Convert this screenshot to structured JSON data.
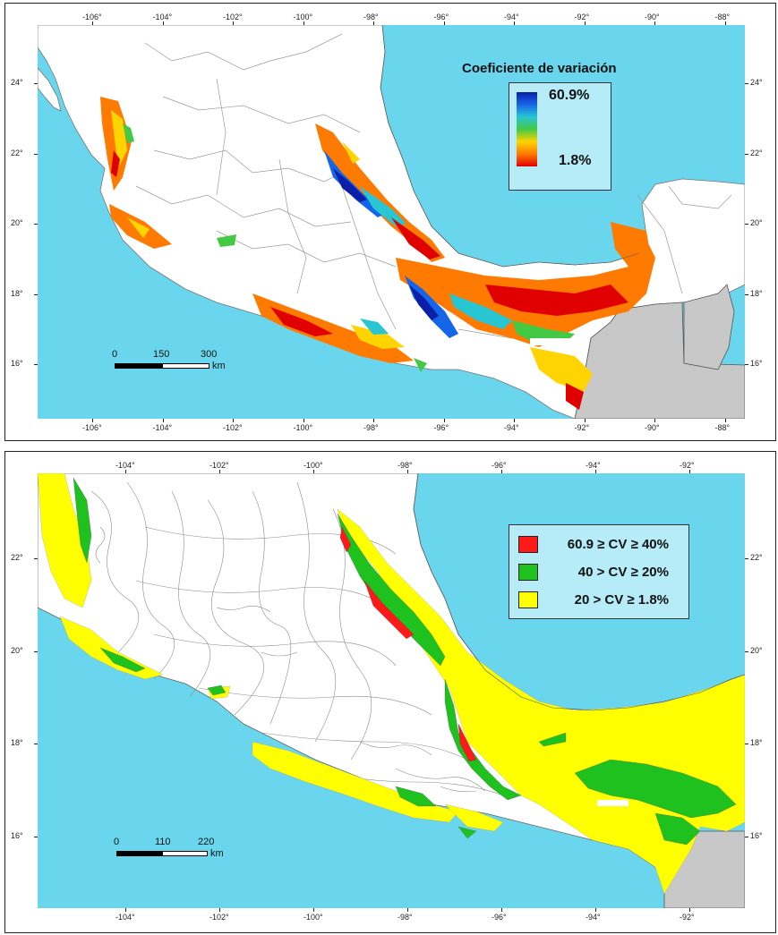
{
  "top_map": {
    "legend_title": "Coeficiente de variación",
    "legend_max": "60.9%",
    "legend_min": "1.8%",
    "colors": [
      "#e10000",
      "#ff7a00",
      "#ffd400",
      "#43c943",
      "#28c6d2",
      "#1565e8",
      "#0b1fa8"
    ],
    "scale": {
      "labels": [
        "0",
        "150",
        "300"
      ],
      "unit": "km"
    },
    "lon_labels": [
      "-106°",
      "-104°",
      "-102°",
      "-100°",
      "-98°",
      "-96°",
      "-94°",
      "-92°",
      "-90°",
      "-88°"
    ],
    "lat_labels": [
      "24°",
      "22°",
      "20°",
      "18°",
      "16°"
    ]
  },
  "bottom_map": {
    "legend_items": [
      {
        "label": "60.9 ≥ CV ≥ 40%",
        "color": "#ff1a1a"
      },
      {
        "label": "40 > CV ≥ 20%",
        "color": "#1fc11f"
      },
      {
        "label": "20 > CV ≥ 1.8%",
        "color": "#ffff00"
      }
    ],
    "scale": {
      "labels": [
        "0",
        "110",
        "220"
      ],
      "unit": "km"
    },
    "lon_labels": [
      "-104°",
      "-102°",
      "-100°",
      "-98°",
      "-96°",
      "-94°",
      "-92°"
    ],
    "lat_labels": [
      "22°",
      "20°",
      "18°",
      "16°"
    ]
  }
}
